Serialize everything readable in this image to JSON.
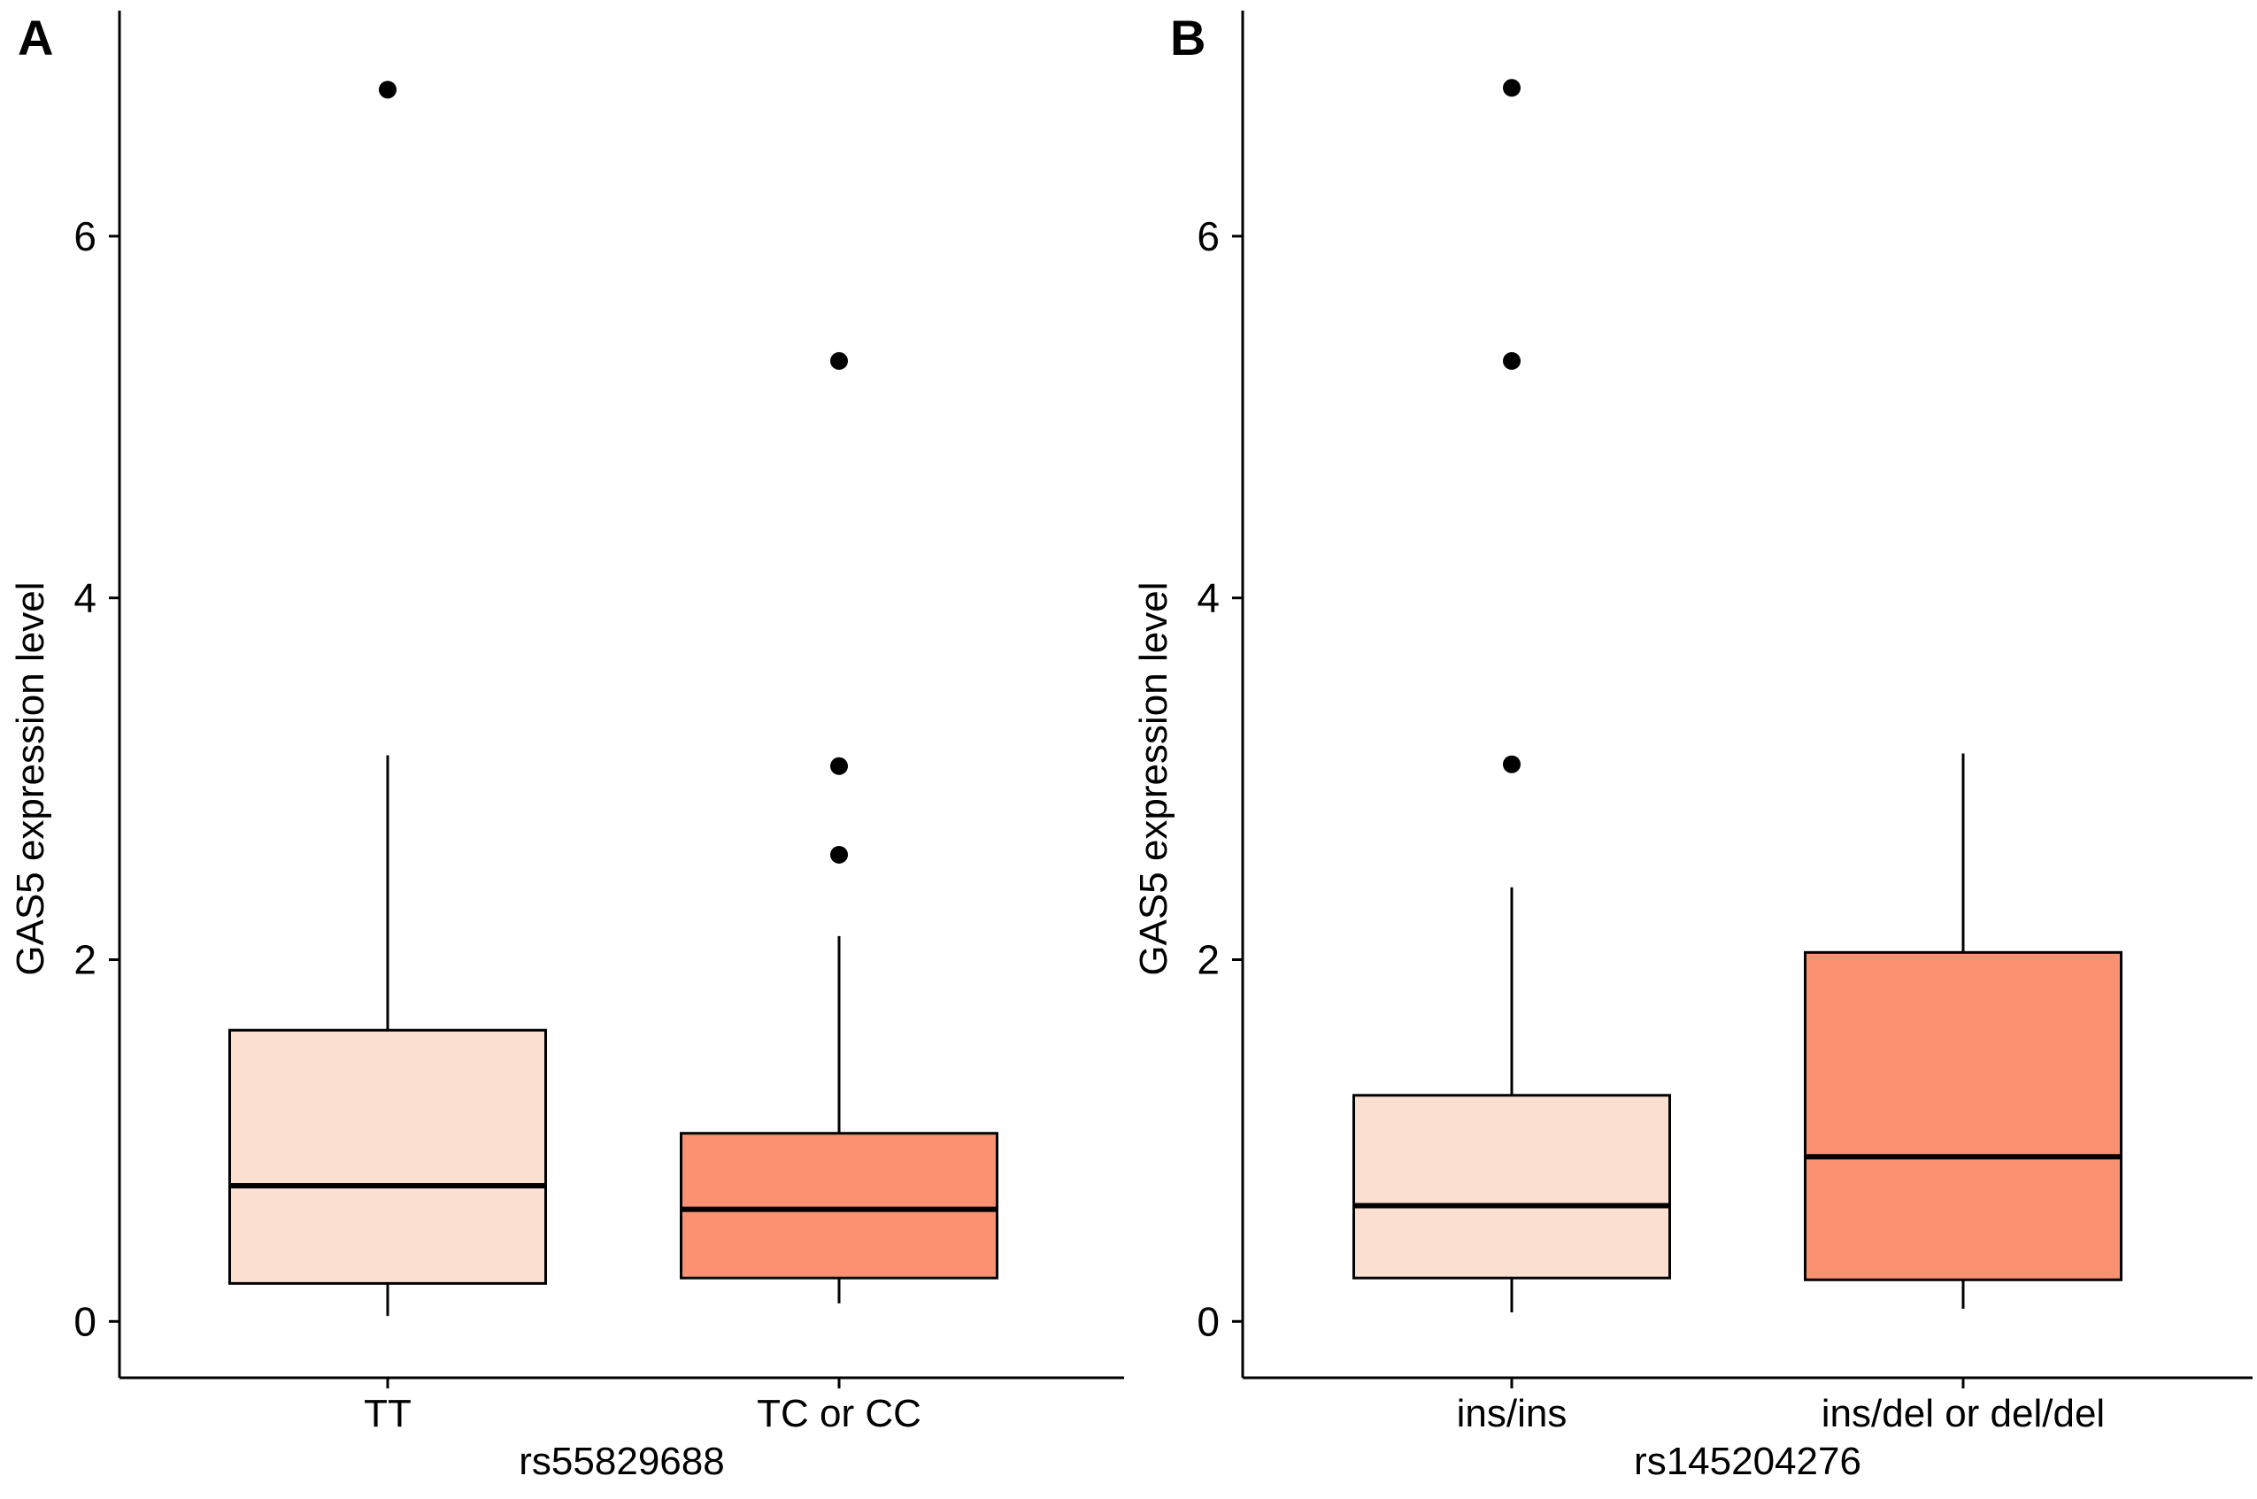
{
  "figure": {
    "background": "#ffffff",
    "axis_color": "#000000",
    "outlier_color": "#000000",
    "light_fill": "#FBE0D2",
    "dark_fill": "#FA9272"
  },
  "chart_data": [
    {
      "type": "box",
      "panel_label": "A",
      "title": "",
      "xlabel": "rs55829688",
      "ylabel": "GAS5 expression level",
      "yticks": [
        0,
        2,
        4,
        6
      ],
      "ylim": [
        -0.31,
        7.25
      ],
      "grid": "off",
      "legend": "none",
      "categories": [
        "TT",
        "TC or CC"
      ],
      "series": [
        {
          "category": "TT",
          "fill": "#FBE0D2",
          "whisker_low": 0.03,
          "q1": 0.21,
          "median": 0.75,
          "q3": 1.61,
          "whisker_high": 3.13,
          "outliers": [
            6.81
          ]
        },
        {
          "category": "TC or CC",
          "fill": "#FA9272",
          "whisker_low": 0.1,
          "q1": 0.24,
          "median": 0.62,
          "q3": 1.04,
          "whisker_high": 2.13,
          "outliers": [
            2.58,
            3.07,
            5.31
          ]
        }
      ]
    },
    {
      "type": "box",
      "panel_label": "B",
      "title": "",
      "xlabel": "rs145204276",
      "ylabel": "GAS5 expression level",
      "yticks": [
        0,
        2,
        4,
        6
      ],
      "ylim": [
        -0.31,
        7.25
      ],
      "grid": "off",
      "legend": "none",
      "categories": [
        "ins/ins",
        "ins/del or del/del"
      ],
      "series": [
        {
          "category": "ins/ins",
          "fill": "#FBE0D2",
          "whisker_low": 0.05,
          "q1": 0.24,
          "median": 0.64,
          "q3": 1.25,
          "whisker_high": 2.4,
          "outliers": [
            3.08,
            5.31,
            6.82
          ]
        },
        {
          "category": "ins/del or del/del",
          "fill": "#FA9272",
          "whisker_low": 0.07,
          "q1": 0.23,
          "median": 0.91,
          "q3": 2.04,
          "whisker_high": 3.14,
          "outliers": []
        }
      ]
    }
  ]
}
